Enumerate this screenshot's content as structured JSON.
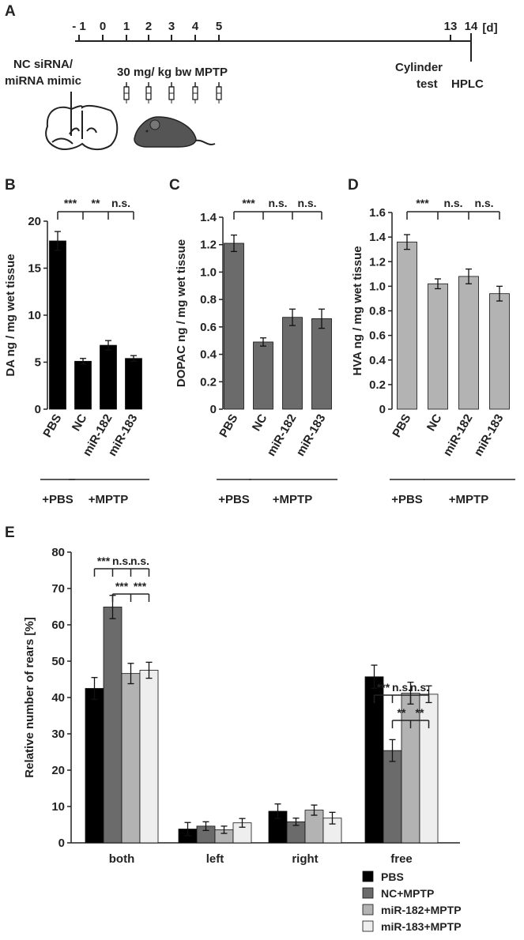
{
  "panels": {
    "A": "A",
    "B": "B",
    "C": "C",
    "D": "D",
    "E": "E"
  },
  "timeline": {
    "days": [
      "- 1",
      "0",
      "1",
      "2",
      "3",
      "4",
      "5",
      "13",
      "14"
    ],
    "unit": "[d]",
    "injection_line1": "NC siRNA/",
    "injection_line2": "miRNA mimic",
    "mptp_label": "30 mg/ kg bw MPTP",
    "cylinder_line1": "Cylinder",
    "cylinder_line2": "test",
    "hplc_label": "HPLC",
    "icons": [
      "brain-section-icon",
      "mouse-icon",
      "syringe-icon"
    ]
  },
  "groups": {
    "pbs": "+PBS",
    "mptp": "+MPTP"
  },
  "chart_data": [
    {
      "id": "B",
      "type": "bar",
      "categories": [
        "PBS",
        "NC",
        "miR-182",
        "miR-183"
      ],
      "values": [
        17.9,
        5.1,
        6.8,
        5.4
      ],
      "errors": [
        1.0,
        0.3,
        0.5,
        0.3
      ],
      "ylabel": "DA ng / mg wet tissue",
      "ylim": [
        0,
        20
      ],
      "yticks": [
        0,
        5,
        10,
        15,
        20
      ],
      "ytick_labels": [
        "0",
        "5",
        "10",
        "15",
        "20"
      ],
      "color": "#000000",
      "significance": [
        "***",
        "**",
        "n.s."
      ]
    },
    {
      "id": "C",
      "type": "bar",
      "categories": [
        "PBS",
        "NC",
        "miR-182",
        "miR-183"
      ],
      "values": [
        1.21,
        0.49,
        0.67,
        0.66
      ],
      "errors": [
        0.06,
        0.03,
        0.06,
        0.07
      ],
      "ylabel": "DOPAC ng / mg wet tissue",
      "ylim": [
        0,
        1.4
      ],
      "yticks": [
        0,
        0.2,
        0.4,
        0.6,
        0.8,
        1.0,
        1.2,
        1.4
      ],
      "ytick_labels": [
        "0",
        "0.2",
        "0.4",
        "0.6",
        "0.8",
        "1.0",
        "1.2",
        "1.4"
      ],
      "color": "#6b6b6b",
      "significance": [
        "***",
        "n.s.",
        "n.s."
      ]
    },
    {
      "id": "D",
      "type": "bar",
      "categories": [
        "PBS",
        "NC",
        "miR-182",
        "miR-183"
      ],
      "values": [
        1.36,
        1.02,
        1.08,
        0.94
      ],
      "errors": [
        0.06,
        0.04,
        0.06,
        0.06
      ],
      "ylabel": "HVA ng / mg wet tissue",
      "ylim": [
        0,
        1.6
      ],
      "yticks": [
        0,
        0.2,
        0.4,
        0.6,
        0.8,
        1.0,
        1.2,
        1.4,
        1.6
      ],
      "ytick_labels": [
        "0",
        "0.2",
        "0.4",
        "0.6",
        "0.8",
        "1.0",
        "1.2",
        "1.4",
        "1.6"
      ],
      "color": "#b3b3b3",
      "significance": [
        "***",
        "n.s.",
        "n.s."
      ]
    },
    {
      "id": "E",
      "type": "bar",
      "categories": [
        "both",
        "left",
        "right",
        "free"
      ],
      "series": [
        {
          "name": "PBS",
          "values": [
            42.5,
            3.8,
            8.7,
            45.7
          ],
          "errors": [
            3.0,
            1.8,
            2.0,
            3.2
          ],
          "color": "#000000"
        },
        {
          "name": "NC+MPTP",
          "values": [
            64.9,
            4.6,
            5.8,
            25.4
          ],
          "errors": [
            3.2,
            1.2,
            1.0,
            3.0
          ],
          "color": "#6b6b6b"
        },
        {
          "name": "miR-182+MPTP",
          "values": [
            46.6,
            3.6,
            9.0,
            41.2
          ],
          "errors": [
            2.8,
            1.0,
            1.4,
            3.0
          ],
          "color": "#b3b3b3"
        },
        {
          "name": "miR-183+MPTP",
          "values": [
            47.5,
            5.5,
            6.8,
            40.9
          ],
          "errors": [
            2.2,
            1.2,
            1.6,
            2.3
          ],
          "color": "#eeeeee"
        }
      ],
      "ylabel": "Relative number of rears [%]",
      "ylim": [
        0,
        80
      ],
      "yticks": [
        0,
        10,
        20,
        30,
        40,
        50,
        60,
        70,
        80
      ],
      "ytick_labels": [
        "0",
        "10",
        "20",
        "30",
        "40",
        "50",
        "60",
        "70",
        "80"
      ],
      "legend_position": "bottom-right",
      "significance_both_top": [
        "***",
        "n.s.",
        "n.s."
      ],
      "significance_both_bottom": [
        "***",
        "***"
      ],
      "significance_free_top": [
        "***",
        "n.s.",
        "n.s."
      ],
      "significance_free_bottom": [
        "**",
        "**"
      ]
    }
  ]
}
